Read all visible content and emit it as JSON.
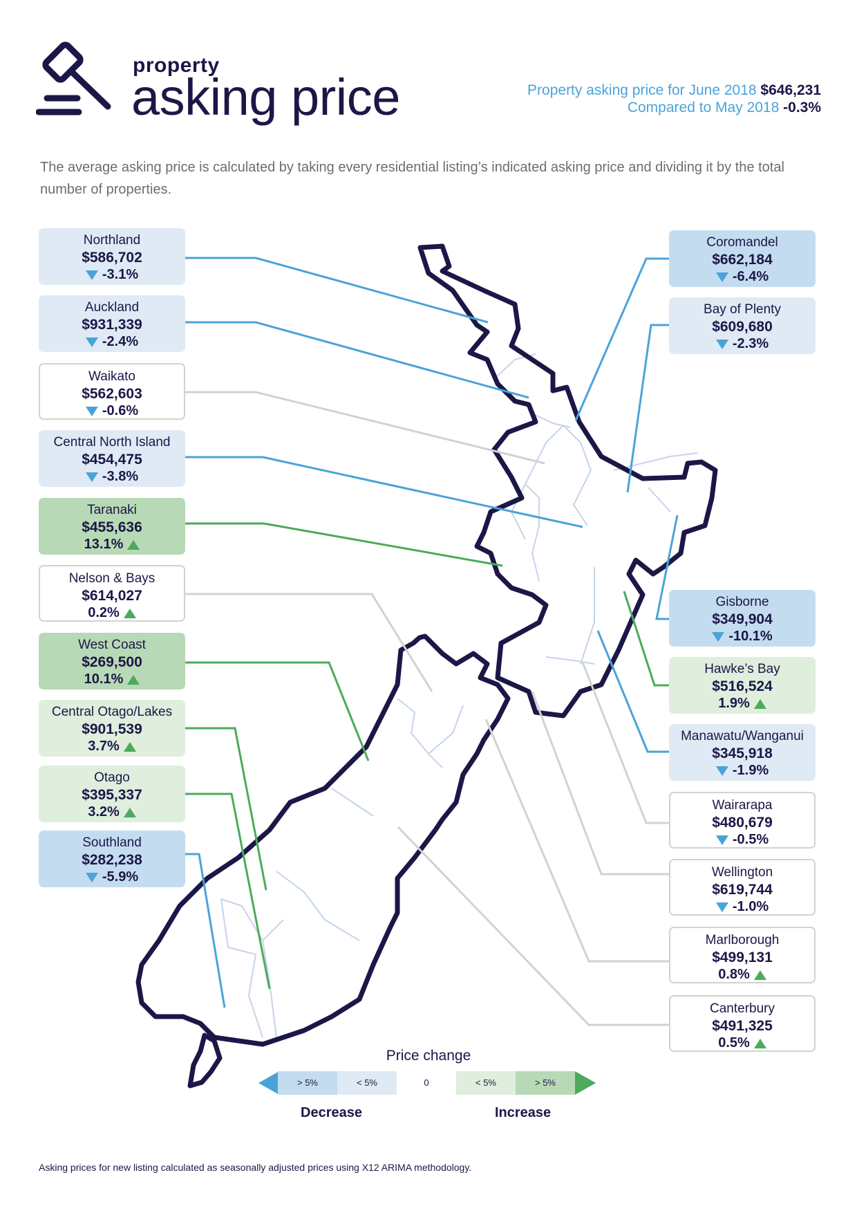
{
  "header": {
    "title_small": "property",
    "title_big": "asking price",
    "summary_line1_text": "Property asking price for June 2018",
    "summary_line1_value": "$646,231",
    "summary_line2_text": "Compared to May 2018",
    "summary_line2_value": "-0.3%"
  },
  "description": "The average asking price is calculated by taking every residential listing’s indicated asking price and dividing it by the total number of properties.",
  "regions": [
    {
      "name": "Northland",
      "price": "$586,702",
      "change": "-3.1%",
      "direction": "down",
      "category": "decrease < 5%"
    },
    {
      "name": "Auckland",
      "price": "$931,339",
      "change": "-2.4%",
      "direction": "down",
      "category": "decrease < 5%"
    },
    {
      "name": "Waikato",
      "price": "$562,603",
      "change": "-0.6%",
      "direction": "down",
      "category": "neutral"
    },
    {
      "name": "Central North Island",
      "price": "$454,475",
      "change": "-3.8%",
      "direction": "down",
      "category": "decrease < 5%"
    },
    {
      "name": "Taranaki",
      "price": "$455,636",
      "change": "13.1%",
      "direction": "up",
      "category": "increase > 5%"
    },
    {
      "name": "Nelson & Bays",
      "price": "$614,027",
      "change": "0.2%",
      "direction": "up",
      "category": "neutral"
    },
    {
      "name": "West Coast",
      "price": "$269,500",
      "change": "10.1%",
      "direction": "up",
      "category": "increase > 5%"
    },
    {
      "name": "Central Otago/Lakes",
      "price": "$901,539",
      "change": "3.7%",
      "direction": "up",
      "category": "increase < 5%"
    },
    {
      "name": "Otago",
      "price": "$395,337",
      "change": "3.2%",
      "direction": "up",
      "category": "increase < 5%"
    },
    {
      "name": "Southland",
      "price": "$282,238",
      "change": "-5.9%",
      "direction": "down",
      "category": "decrease > 5%"
    },
    {
      "name": "Coromandel",
      "price": "$662,184",
      "change": "-6.4%",
      "direction": "down",
      "category": "decrease > 5%"
    },
    {
      "name": "Bay of Plenty",
      "price": "$609,680",
      "change": "-2.3%",
      "direction": "down",
      "category": "decrease < 5%"
    },
    {
      "name": "Gisborne",
      "price": "$349,904",
      "change": "-10.1%",
      "direction": "down",
      "category": "decrease > 5%"
    },
    {
      "name": "Hawke’s Bay",
      "price": "$516,524",
      "change": "1.9%",
      "direction": "up",
      "category": "increase < 5%"
    },
    {
      "name": "Manawatu/Wanganui",
      "price": "$345,918",
      "change": "-1.9%",
      "direction": "down",
      "category": "decrease < 5%"
    },
    {
      "name": "Wairarapa",
      "price": "$480,679",
      "change": "-0.5%",
      "direction": "down",
      "category": "neutral"
    },
    {
      "name": "Wellington",
      "price": "$619,744",
      "change": "-1.0%",
      "direction": "down",
      "category": "neutral"
    },
    {
      "name": "Marlborough",
      "price": "$499,131",
      "change": "0.8%",
      "direction": "up",
      "category": "neutral"
    },
    {
      "name": "Canterbury",
      "price": "$491,325",
      "change": "0.5%",
      "direction": "up",
      "category": "neutral"
    }
  ],
  "legend": {
    "title": "Price change",
    "dec_big": "> 5%",
    "dec_small": "< 5%",
    "zero": "0",
    "inc_small": "< 5%",
    "inc_big": "> 5%",
    "decrease_label": "Decrease",
    "increase_label": "Increase"
  },
  "colors": {
    "navy": "#1b1747",
    "blue": "#4aa3d8",
    "green": "#4caa5a",
    "decrease_big_fill": "#c4dcef",
    "decrease_small_fill": "#dfeaf5",
    "increase_big_fill": "#b8d9b5",
    "increase_small_fill": "#dfeedd",
    "neutral_line": "#d2d2d2",
    "region_border": "#c6d4ea"
  },
  "footnote": "Asking prices for new listing calculated as seasonally adjusted prices using X12 ARIMA methodology."
}
